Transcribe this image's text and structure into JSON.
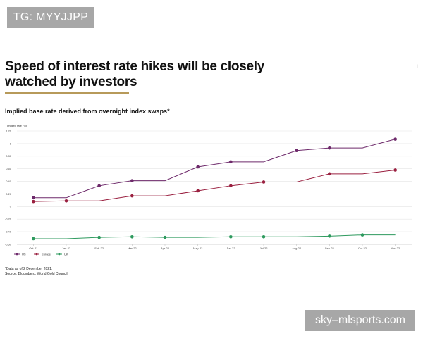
{
  "watermark_top": "TG: MYYJJPP",
  "watermark_bottom": "sky–mlsports.com",
  "side_mark": "I",
  "notes": {
    "data_date": "*Data as of 2 December 2021.",
    "source": "Source: Bloomberg, World Gold Council"
  },
  "chart_data": {
    "type": "line",
    "title": "Speed of interest rate hikes will be closely watched by investors",
    "subtitle": "Implied base rate derived from overnight index swaps*",
    "ylabel": "Implied rate (%)",
    "xlabel": "",
    "categories": [
      "Oct-21",
      "Jan-22",
      "Feb-22",
      "Mar-22",
      "Apr-22",
      "May-22",
      "Jun-22",
      "Jul-22",
      "Aug-22",
      "Sep-22",
      "Oct-22",
      "Nov-22"
    ],
    "ylim": [
      -0.6,
      1.2
    ],
    "yticks": [
      "1.20",
      "1",
      "0.80",
      "0.60",
      "0.40",
      "0.20",
      "0",
      "-0.20",
      "-0.40",
      "-0.60"
    ],
    "ytick_values": [
      1.2,
      1.0,
      0.8,
      0.6,
      0.4,
      0.2,
      0,
      -0.2,
      -0.4,
      -0.6
    ],
    "grid": true,
    "legend": "bottom-left",
    "series": [
      {
        "name": "US",
        "color": "#6e2a6b",
        "values": [
          0.14,
          0.14,
          0.33,
          0.41,
          0.41,
          0.63,
          0.71,
          0.71,
          0.89,
          0.93,
          0.93,
          1.07
        ],
        "markers": [
          0,
          2,
          3,
          5,
          6,
          8,
          9,
          11
        ]
      },
      {
        "name": "Europe",
        "color": "#9a2040",
        "values": [
          0.08,
          0.09,
          0.09,
          0.17,
          0.17,
          0.25,
          0.33,
          0.39,
          0.39,
          0.52,
          0.52,
          0.58
        ],
        "markers": [
          0,
          1,
          3,
          5,
          6,
          7,
          9,
          11
        ]
      },
      {
        "name": "UK",
        "color": "#2e9a5e",
        "values": [
          -0.51,
          -0.51,
          -0.49,
          -0.48,
          -0.49,
          -0.49,
          -0.48,
          -0.48,
          -0.48,
          -0.47,
          -0.45,
          -0.45
        ],
        "markers": [
          0,
          2,
          3,
          4,
          6,
          7,
          9,
          10
        ]
      }
    ]
  }
}
